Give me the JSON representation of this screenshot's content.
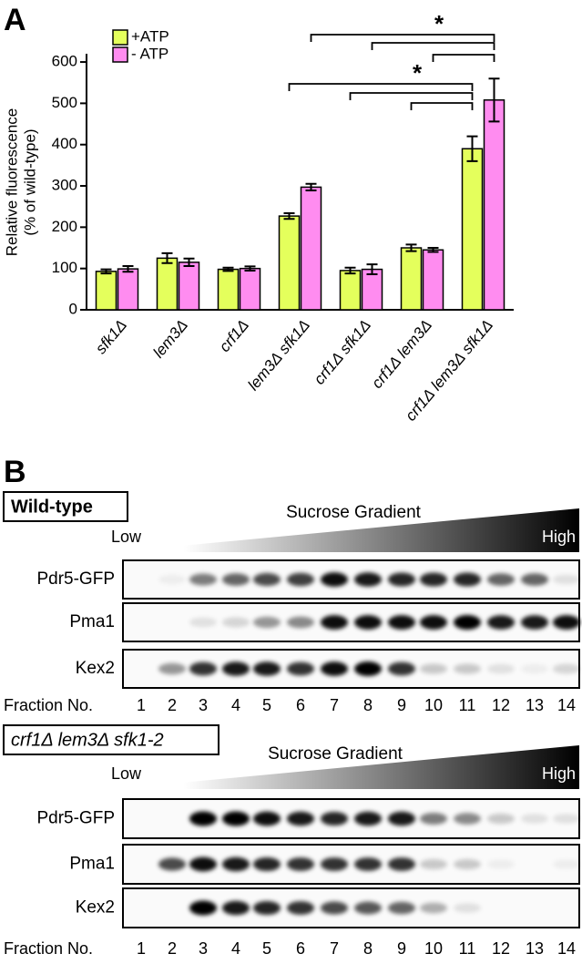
{
  "chart_data": {
    "type": "bar",
    "panel_label": "A",
    "ylabel_lines": [
      "Relative fluorescence",
      "(% of wild-type)"
    ],
    "categories": [
      "sfk1Δ",
      "lem3Δ",
      "crf1Δ",
      "lem3Δ sfk1Δ",
      "crf1Δ sfk1Δ",
      "crf1Δ lem3Δ",
      "crf1Δ lem3Δ sfk1Δ"
    ],
    "series": [
      {
        "name": "+ATP",
        "color": "#e4ff5c",
        "values": [
          93,
          125,
          98,
          227,
          95,
          150,
          390
        ],
        "errors": [
          5,
          12,
          4,
          7,
          7,
          8,
          30
        ]
      },
      {
        "name": "- ATP",
        "color": "#ff8cf0",
        "values": [
          99,
          115,
          100,
          297,
          98,
          145,
          508
        ],
        "errors": [
          7,
          9,
          5,
          8,
          12,
          5,
          52
        ]
      }
    ],
    "ylim": [
      0,
      620
    ],
    "yticks": [
      0,
      100,
      200,
      300,
      400,
      500,
      600
    ],
    "annotations": [
      "*",
      "*"
    ]
  },
  "panel_b": {
    "label": "B",
    "blots": [
      {
        "strain": "Wild-type",
        "gradient_title": "Sucrose Gradient",
        "low": "Low",
        "high": "High",
        "rows": [
          "Pdr5-GFP",
          "Pma1",
          "Kex2"
        ],
        "fraction_label": "Fraction No.",
        "fractions": [
          1,
          2,
          3,
          4,
          5,
          6,
          7,
          8,
          9,
          10,
          11,
          12,
          13,
          14
        ]
      },
      {
        "strain": "crf1Δ lem3Δ sfk1-2",
        "gradient_title": "Sucrose Gradient",
        "low": "Low",
        "high": "High",
        "rows": [
          "Pdr5-GFP",
          "Pma1",
          "Kex2"
        ],
        "fraction_label": "Fraction No.",
        "fractions": [
          1,
          2,
          3,
          4,
          5,
          6,
          7,
          8,
          9,
          10,
          11,
          12,
          13,
          14
        ]
      }
    ]
  }
}
